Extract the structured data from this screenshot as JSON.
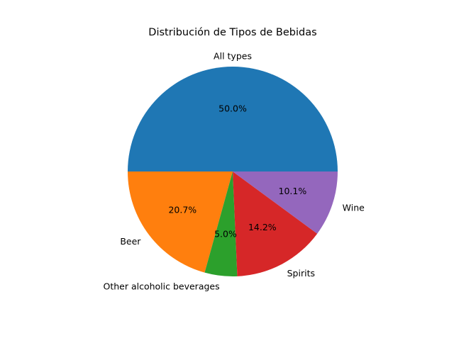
{
  "chart_data": {
    "type": "pie",
    "title": "Distribución de Tipos de Bebidas",
    "slices": [
      {
        "label": "All types",
        "value": 50.0,
        "pct_label": "50.0%",
        "color": "#1f77b4"
      },
      {
        "label": "Beer",
        "value": 20.7,
        "pct_label": "20.7%",
        "color": "#ff7f0e"
      },
      {
        "label": "Other alcoholic beverages",
        "value": 5.0,
        "pct_label": "5.0%",
        "color": "#2ca02c"
      },
      {
        "label": "Spirits",
        "value": 14.2,
        "pct_label": "14.2%",
        "color": "#d62728"
      },
      {
        "label": "Wine",
        "value": 10.1,
        "pct_label": "10.1%",
        "color": "#9467bd"
      }
    ]
  }
}
